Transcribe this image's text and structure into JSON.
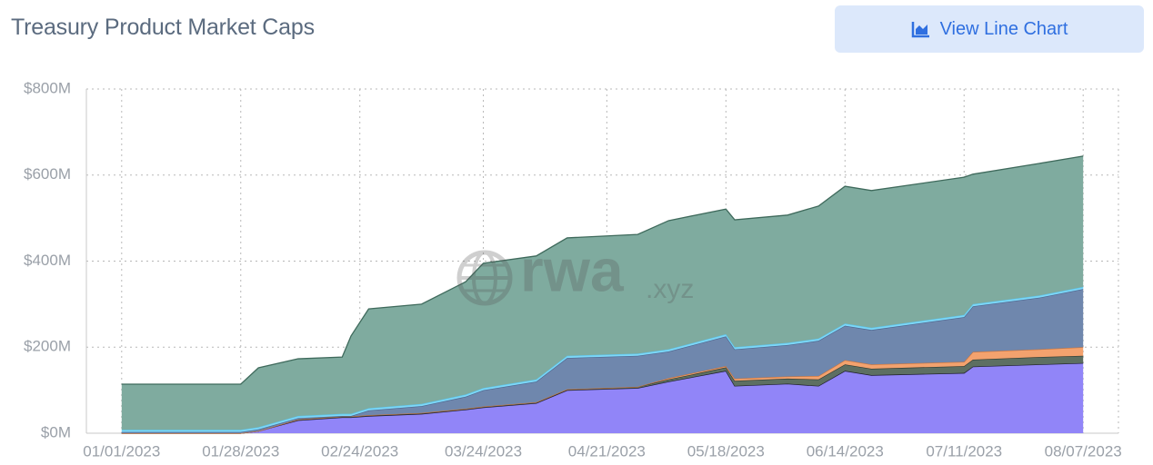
{
  "header": {
    "title": "Treasury Product Market Caps",
    "button": "View Line Chart"
  },
  "watermark": {
    "main": "rwa",
    "suffix": ".xyz"
  },
  "chart_data": {
    "type": "area",
    "stacked": true,
    "x": [
      "01/01/2023",
      "01/28/2023",
      "02/01/2023",
      "02/10/2023",
      "02/20/2023",
      "02/22/2023",
      "02/26/2023",
      "03/10/2023",
      "03/20/2023",
      "03/24/2023",
      "04/05/2023",
      "04/12/2023",
      "04/28/2023",
      "05/05/2023",
      "05/18/2023",
      "05/20/2023",
      "06/01/2023",
      "06/08/2023",
      "06/14/2023",
      "06/20/2023",
      "07/11/2023",
      "07/13/2023",
      "07/28/2023",
      "08/07/2023"
    ],
    "series": [
      {
        "color": "#9185f8",
        "line": "#1c1c2a",
        "values": [
          0,
          0,
          5,
          30,
          37,
          37,
          40,
          45,
          55,
          60,
          70,
          100,
          105,
          120,
          145,
          110,
          115,
          110,
          145,
          135,
          140,
          155,
          160,
          163
        ]
      },
      {
        "color": "#5d6f62",
        "line": "#2d3a31",
        "values": [
          0,
          0,
          0,
          2,
          2,
          2,
          2,
          2,
          2,
          2,
          2,
          2,
          3,
          5,
          8,
          12,
          12,
          15,
          15,
          15,
          16,
          16,
          17,
          17
        ]
      },
      {
        "color": "#f3a26e",
        "line": "#c9743d",
        "values": [
          0,
          0,
          0,
          0,
          0,
          0,
          0,
          0,
          0,
          0,
          0,
          0,
          0,
          3,
          3,
          5,
          5,
          8,
          10,
          10,
          10,
          18,
          18,
          20
        ]
      },
      {
        "color": "#6f87ad",
        "line": "#4c6690",
        "values": [
          3,
          3,
          4,
          3,
          1,
          1,
          11,
          16,
          28,
          38,
          48,
          73,
          72,
          62,
          69,
          68,
          73,
          82,
          80,
          80,
          104,
          106,
          120,
          135
        ]
      },
      {
        "color": "#7fd8f7",
        "line": "#5bc6ef",
        "values": [
          5,
          5,
          5,
          5,
          5,
          5,
          5,
          5,
          5,
          5,
          5,
          5,
          5,
          5,
          5,
          5,
          5,
          5,
          5,
          5,
          5,
          5,
          5,
          5
        ]
      },
      {
        "color": "#7fab9f",
        "line": "#3f6a5c",
        "values": [
          106,
          106,
          138,
          133,
          132,
          181,
          231,
          232,
          262,
          290,
          287,
          274,
          277,
          299,
          291,
          296,
          297,
          308,
          319,
          319,
          320,
          302,
          307,
          304
        ]
      }
    ],
    "xlim": [
      "12/24/2022",
      "08/15/2023"
    ],
    "xticks": [
      "01/01/2023",
      "01/28/2023",
      "02/24/2023",
      "03/24/2023",
      "04/21/2023",
      "05/18/2023",
      "06/14/2023",
      "07/11/2023",
      "08/07/2023"
    ],
    "ylim": [
      0,
      800
    ],
    "yticks": [
      {
        "value": 0,
        "label": "$0M"
      },
      {
        "value": 200,
        "label": "$200M"
      },
      {
        "value": 400,
        "label": "$400M"
      },
      {
        "value": 600,
        "label": "$600M"
      },
      {
        "value": 800,
        "label": "$800M"
      }
    ],
    "grid": true
  }
}
